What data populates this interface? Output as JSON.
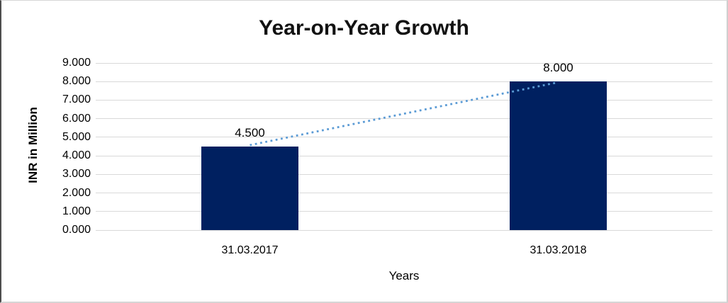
{
  "chart_data": {
    "type": "bar",
    "title": "Year-on-Year Growth",
    "xlabel": "Years",
    "ylabel": "INR in Million",
    "categories": [
      "31.03.2017",
      "31.03.2018"
    ],
    "values": [
      4.5,
      8.0
    ],
    "data_labels": [
      "4.500",
      "8.000"
    ],
    "ylim": [
      0,
      9
    ],
    "ytick_interval": 1,
    "ytick_labels": [
      "0.000",
      "1.000",
      "2.000",
      "3.000",
      "4.000",
      "5.000",
      "6.000",
      "7.000",
      "8.000",
      "9.000"
    ],
    "grid": "horizontal",
    "legend": "none",
    "trendline": {
      "style": "dotted",
      "connects": "bar-top of 31.03.2017 to bar-top of 31.03.2018",
      "from_value": 4.5,
      "to_value": 8.0
    },
    "colors": {
      "bar": "#002060",
      "gridline": "#d9d9d9",
      "trendline": "#5b9bd5",
      "text": "#000000",
      "background": "#ffffff"
    }
  }
}
